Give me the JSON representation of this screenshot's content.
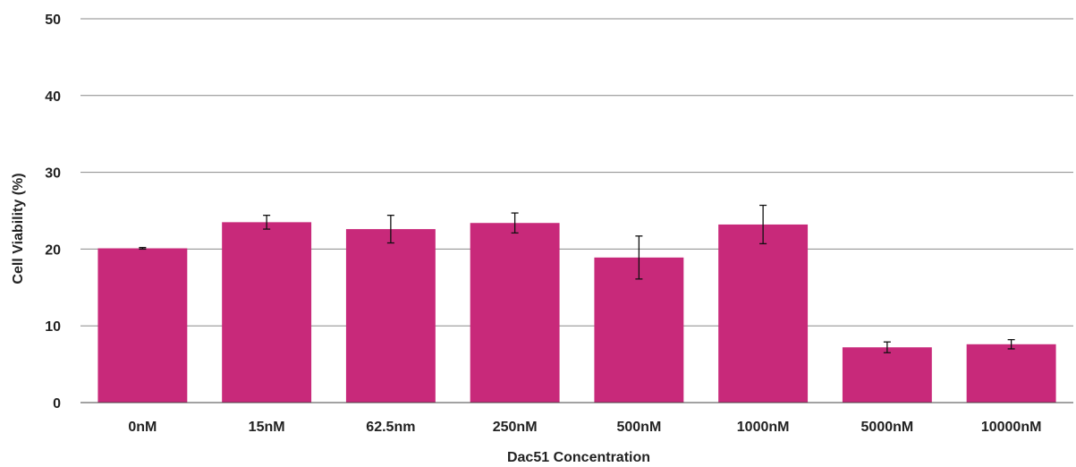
{
  "chart_data": {
    "type": "bar",
    "title": "",
    "xlabel": "Dac51 Concentration",
    "ylabel": "Cell Viability (%)",
    "ylim": [
      0,
      50
    ],
    "yticks": [
      0,
      10,
      20,
      30,
      40,
      50
    ],
    "grid": true,
    "legend": "none",
    "categories": [
      "0nM",
      "15nM",
      "62.5nm",
      "250nM",
      "500nM",
      "1000nM",
      "5000nM",
      "10000nM"
    ],
    "values": [
      20.1,
      23.5,
      22.6,
      23.4,
      18.9,
      23.2,
      7.2,
      7.6
    ],
    "errors": [
      0.1,
      0.9,
      1.8,
      1.3,
      2.8,
      2.5,
      0.7,
      0.6
    ],
    "bar_color": "#C8297A"
  }
}
